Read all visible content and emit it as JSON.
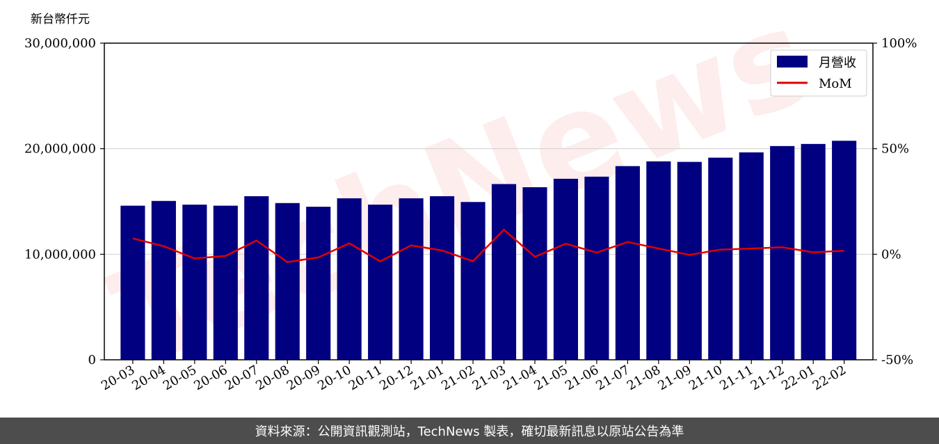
{
  "chart_data": {
    "type": "bar",
    "unit_label": "新台幣仟元",
    "categories": [
      "20-03",
      "20-04",
      "20-05",
      "20-06",
      "20-07",
      "20-08",
      "20-09",
      "20-10",
      "20-11",
      "20-12",
      "21-01",
      "21-02",
      "21-03",
      "21-04",
      "21-05",
      "21-06",
      "21-07",
      "21-08",
      "21-09",
      "21-10",
      "21-11",
      "21-12",
      "22-01",
      "22-02"
    ],
    "series": [
      {
        "name": "月營收",
        "axis": "left",
        "type": "bar",
        "color": "#000080",
        "values": [
          14600000,
          15050000,
          14700000,
          14600000,
          15500000,
          14850000,
          14500000,
          15300000,
          14700000,
          15300000,
          15500000,
          14950000,
          16650000,
          16350000,
          17150000,
          17350000,
          18350000,
          18800000,
          18750000,
          19150000,
          19650000,
          20250000,
          20450000,
          20750000
        ]
      },
      {
        "name": "MoM",
        "axis": "right",
        "type": "line",
        "color": "#e00000",
        "values": [
          7.5,
          3.8,
          -2.0,
          -0.8,
          6.5,
          -3.7,
          -1.5,
          5.2,
          -3.4,
          4.2,
          1.8,
          -3.3,
          11.6,
          -1.2,
          5.0,
          0.8,
          5.8,
          2.7,
          -0.3,
          2.2,
          2.7,
          3.3,
          0.9,
          1.7
        ]
      }
    ],
    "y_left": {
      "ylim": [
        0,
        30000000
      ],
      "ticks": [
        "0",
        "10,000,000",
        "20,000,000",
        "30,000,000"
      ],
      "tick_values": [
        0,
        10000000,
        20000000,
        30000000
      ]
    },
    "y_right": {
      "ylim": [
        -50,
        100
      ],
      "ticks": [
        "-50%",
        "0%",
        "50%",
        "100%"
      ],
      "tick_values": [
        -50,
        0,
        50,
        100
      ]
    },
    "grid": "horizontal",
    "legend_placement": "top-right"
  },
  "watermark": "TechNews",
  "footer": {
    "source": "資料來源：公開資訊觀測站，TechNews 製表，確切最新訊息以原站公告為準"
  }
}
